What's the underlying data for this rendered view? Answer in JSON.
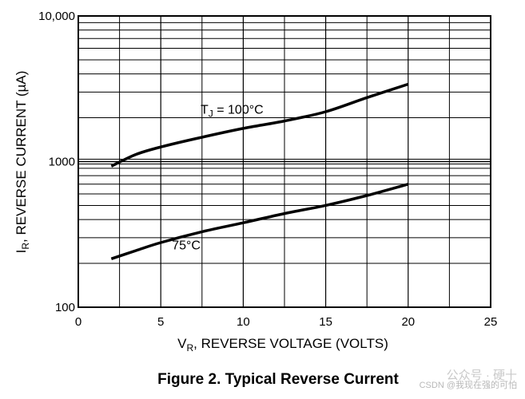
{
  "chart_data": {
    "type": "line",
    "title": "Figure 2. Typical Reverse Current",
    "xlabel": "VR, REVERSE VOLTAGE (VOLTS)",
    "xlabel_main": "V",
    "xlabel_sub": "R",
    "xlabel_rest": ", REVERSE VOLTAGE (VOLTS)",
    "ylabel": "IR, REVERSE CURRENT (µA)",
    "ylabel_main": "I",
    "ylabel_sub": "R",
    "ylabel_rest": ", REVERSE CURRENT (µA)",
    "xlim": [
      0,
      25
    ],
    "ylim": [
      100,
      10000
    ],
    "yscale": "log",
    "x_ticks": [
      0,
      5,
      10,
      15,
      20,
      25
    ],
    "x_tick_labels": [
      "0",
      "5",
      "10",
      "15",
      "20",
      "25"
    ],
    "y_ticks": [
      100,
      1000,
      10000
    ],
    "y_tick_labels": [
      "100",
      "1000",
      "10,000"
    ],
    "grid": true,
    "series": [
      {
        "name": "TJ = 100°C",
        "label_main": "T",
        "label_sub": "J",
        "label_rest": " = 100°C",
        "x": [
          2,
          3.5,
          5,
          7.5,
          10,
          12.5,
          15,
          17.5,
          20
        ],
        "values": [
          930,
          1120,
          1260,
          1470,
          1690,
          1900,
          2200,
          2750,
          3400
        ]
      },
      {
        "name": "75°C",
        "label_main": "75°C",
        "label_sub": "",
        "label_rest": "",
        "x": [
          2,
          3.5,
          5,
          7.5,
          10,
          12.5,
          15,
          17.5,
          20
        ],
        "values": [
          215,
          245,
          278,
          330,
          380,
          440,
          500,
          585,
          700
        ]
      }
    ]
  },
  "watermark": {
    "line1": "公众号 · 硬十",
    "line2": "CSDN @我现在强的可怕"
  }
}
